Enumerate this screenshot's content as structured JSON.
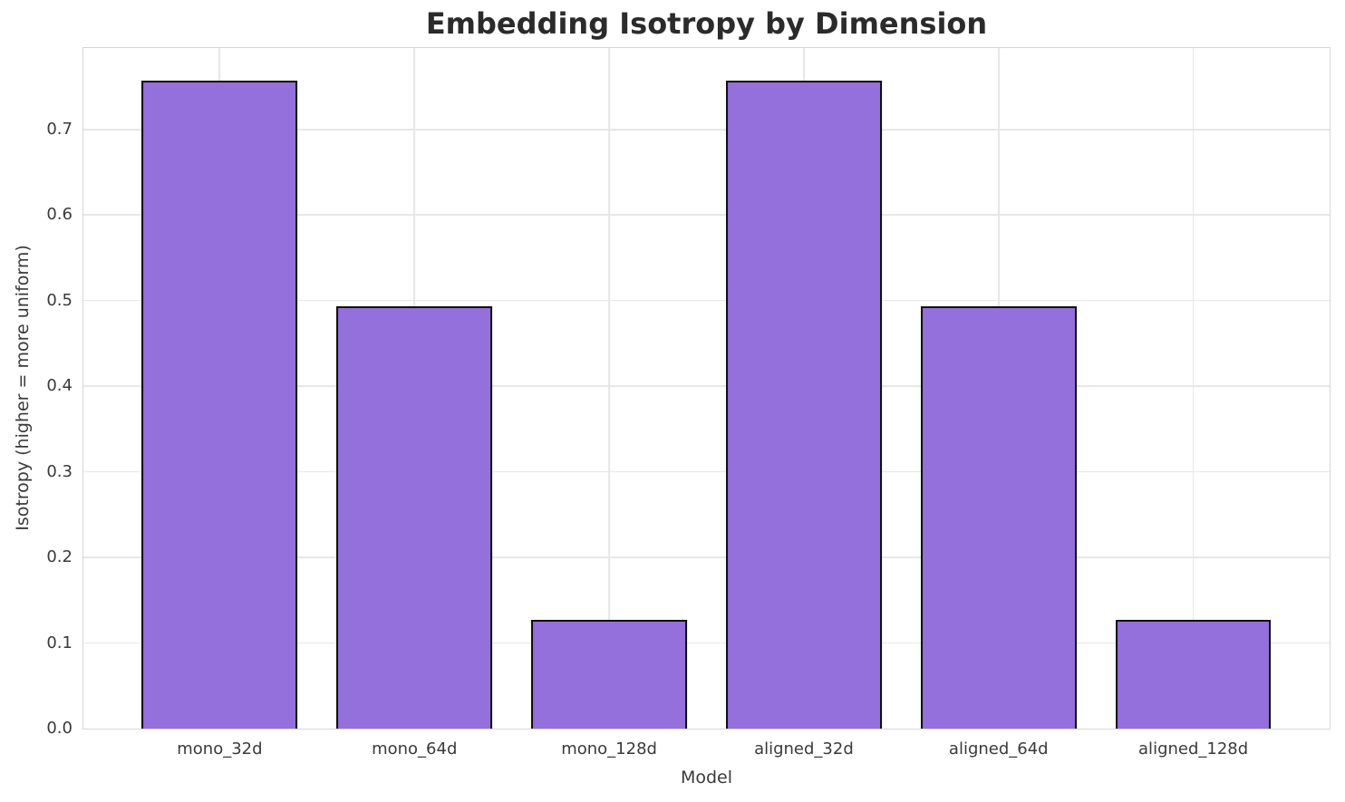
{
  "chart_data": {
    "type": "bar",
    "title": "Embedding Isotropy by Dimension",
    "xlabel": "Model",
    "ylabel": "Isotropy (higher = more uniform)",
    "categories": [
      "mono_32d",
      "mono_64d",
      "mono_128d",
      "aligned_32d",
      "aligned_64d",
      "aligned_128d"
    ],
    "values": [
      0.757,
      0.493,
      0.127,
      0.757,
      0.493,
      0.127
    ],
    "ylim": [
      0,
      0.795
    ],
    "xlim": [
      -0.7,
      5.7
    ],
    "bar_width": 0.8,
    "yticks": [
      0.0,
      0.1,
      0.2,
      0.3,
      0.4,
      0.5,
      0.6,
      0.7
    ],
    "ytick_labels": [
      "0.0",
      "0.1",
      "0.2",
      "0.3",
      "0.4",
      "0.5",
      "0.6",
      "0.7"
    ],
    "grid": "both",
    "legend": "none",
    "colors": {
      "bar_fill": "#9370DB",
      "bar_edge": "#0d0d0d",
      "grid": "#e7e7e7",
      "spine": "#d6d6d6",
      "title_text": "#2b2b2b",
      "tick_text": "#3a3a3a"
    }
  }
}
